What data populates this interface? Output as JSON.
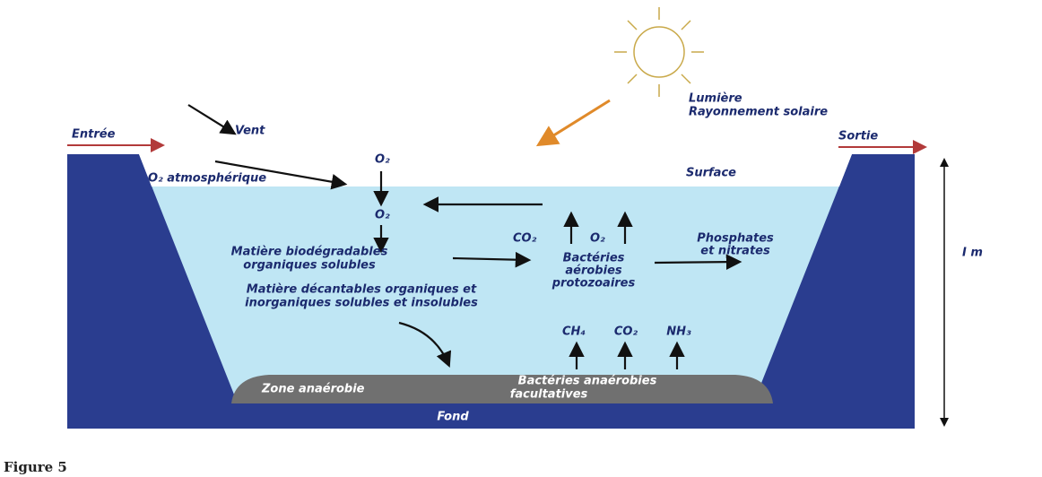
{
  "labels": {
    "entree": "Entrée",
    "vent": "Vent",
    "o2_top": "O₂",
    "lumiere": "Lumière",
    "rayonnement": "Rayonnement solaire",
    "sortie": "Sortie",
    "o2_atmos": "O₂ atmosphérique",
    "surface": "Surface",
    "o2_mid": "O₂",
    "matiere_bio_1": "Matière biodégradables",
    "matiere_bio_2": "organiques solubles",
    "co2_aer": "CO₂",
    "o2_aer": "O₂",
    "bact_aer_1": "Bactéries",
    "bact_aer_2": "aérobies",
    "bact_aer_3": "protozoaires",
    "phos_1": "Phosphates",
    "phos_2": "et nitrates",
    "depth": "I m",
    "matiere_dec_1": "Matière décantables organiques et",
    "matiere_dec_2": "inorganiques solubles et insolubles",
    "ch4": "CH₄",
    "co2_ana": "CO₂",
    "nh3": "NH₃",
    "zone_ana": "Zone anaérobie",
    "bact_ana_1": "Bactéries anaérobies",
    "bact_ana_2": "facultatives",
    "fond": "Fond"
  },
  "caption": "Figure 5"
}
